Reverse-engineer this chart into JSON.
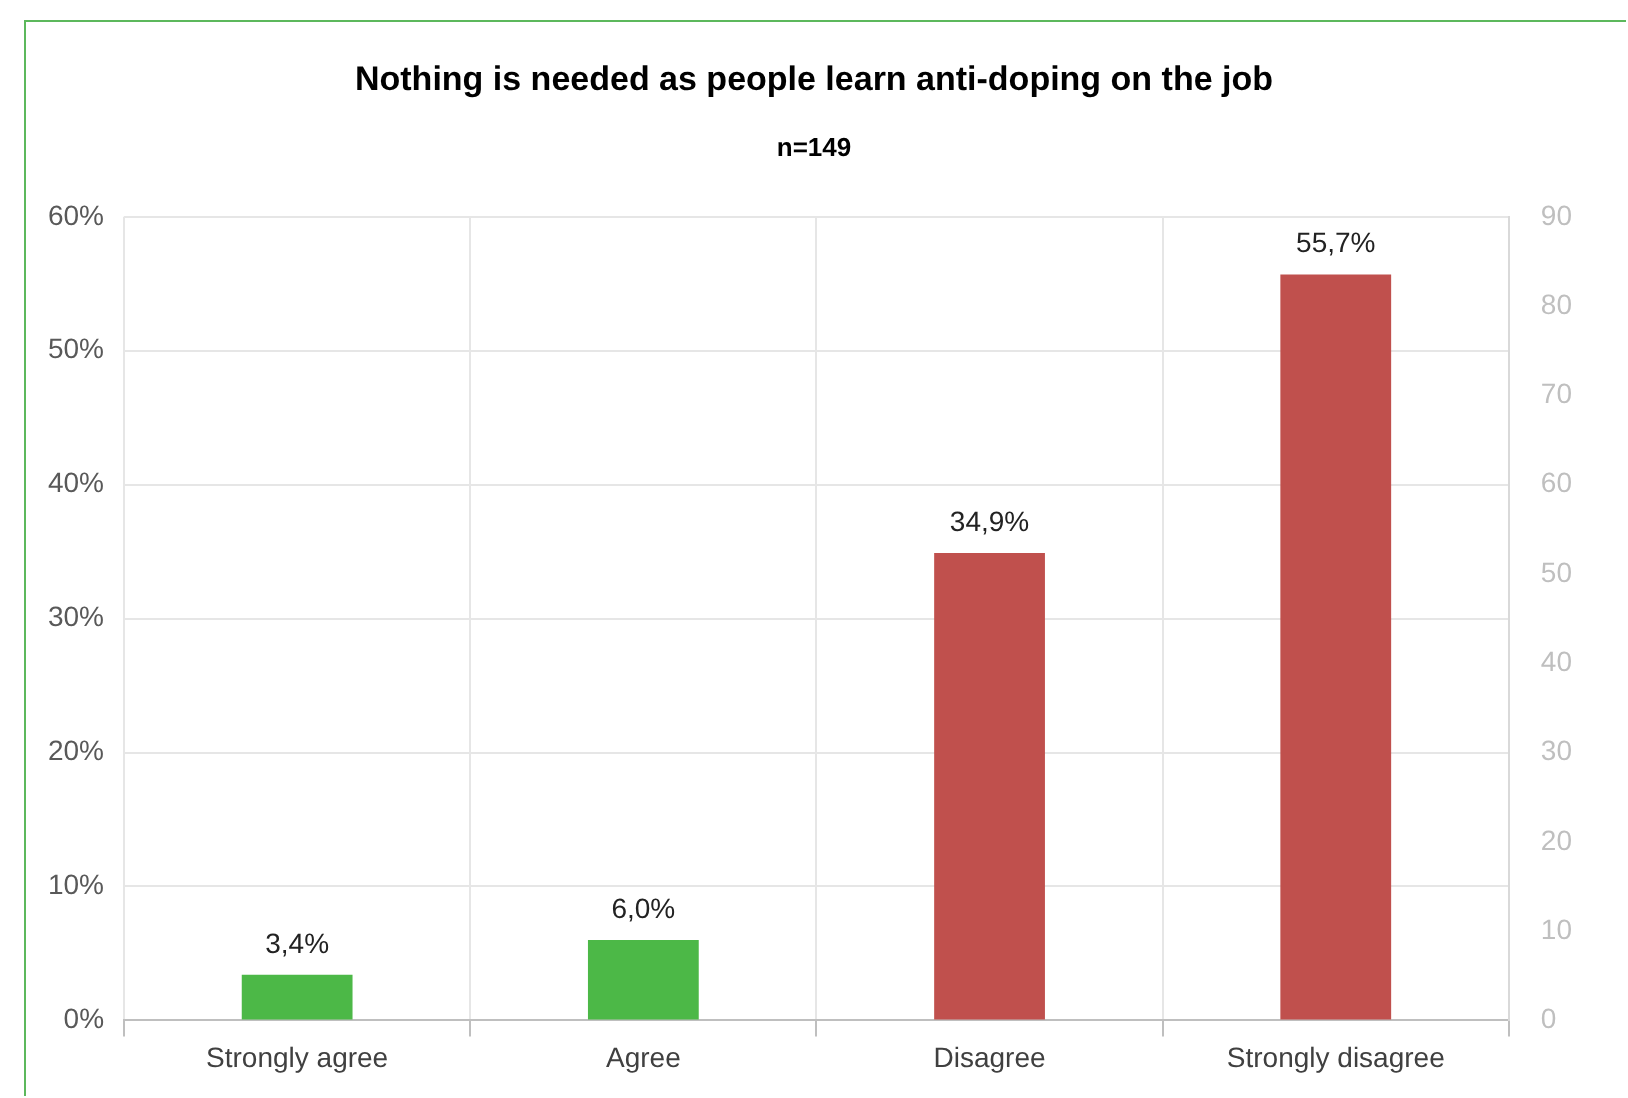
{
  "chart_data": {
    "type": "bar",
    "title": "Nothing is needed as people learn anti-doping on the job",
    "subtitle": "n=149",
    "categories": [
      "Strongly agree",
      "Agree",
      "Disagree",
      "Strongly disagree"
    ],
    "values": [
      3.4,
      6.0,
      34.9,
      55.7
    ],
    "colors": [
      "#4cb847",
      "#4cb847",
      "#c0504d",
      "#c0504d"
    ],
    "value_labels": [
      "3,4%",
      "6,0%",
      "34,9%",
      "55,7%"
    ],
    "ylim": [
      0,
      60
    ],
    "yticks": [
      {
        "value": 0,
        "label": "0%"
      },
      {
        "value": 10,
        "label": "10%"
      },
      {
        "value": 20,
        "label": "20%"
      },
      {
        "value": 30,
        "label": "30%"
      },
      {
        "value": 40,
        "label": "40%"
      },
      {
        "value": 50,
        "label": "50%"
      },
      {
        "value": 60,
        "label": "60%"
      }
    ],
    "y2lim": [
      0,
      90
    ],
    "y2ticks": [
      0,
      10,
      20,
      30,
      40,
      50,
      60,
      70,
      80,
      90
    ],
    "grid": true,
    "legend": false
  }
}
